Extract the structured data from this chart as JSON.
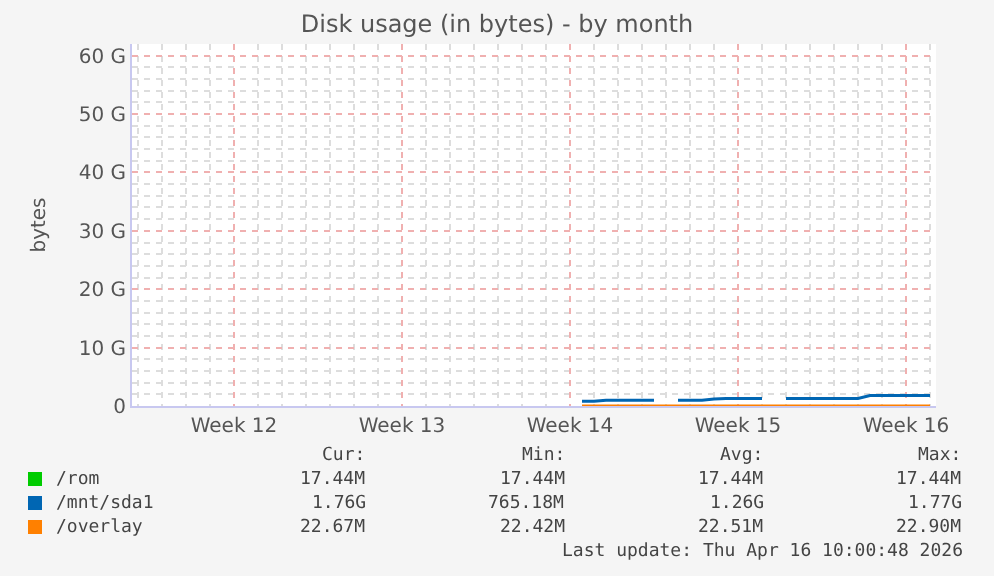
{
  "chart_data": {
    "type": "line",
    "title": "Disk usage (in bytes) - by month",
    "ylabel": "bytes",
    "categories": [
      null,
      null,
      null,
      null,
      null,
      null,
      null,
      null,
      "Week 12",
      null,
      null,
      null,
      null,
      null,
      null,
      null,
      null,
      null,
      null,
      null,
      null,
      null,
      "Week 13",
      null,
      null,
      null,
      null,
      null,
      null,
      null,
      null,
      null,
      null,
      null,
      null,
      null,
      "Week 14",
      null,
      null,
      null,
      null,
      null,
      null,
      null,
      null,
      null,
      null,
      null,
      null,
      null,
      "Week 15",
      null,
      null,
      null,
      null,
      null,
      null,
      null,
      null,
      null,
      null,
      null,
      null,
      null,
      "Week 16",
      null,
      null
    ],
    "ylim": [
      0,
      62
    ],
    "yticks": [
      {
        "value": 0,
        "label": "0"
      },
      {
        "value": 10,
        "label": "10 G"
      },
      {
        "value": 20,
        "label": "20 G"
      },
      {
        "value": 30,
        "label": "30 G"
      },
      {
        "value": 40,
        "label": "40 G"
      },
      {
        "value": 50,
        "label": "50 G"
      },
      {
        "value": 60,
        "label": "60 G"
      }
    ],
    "grid": true,
    "legend": "bottom",
    "series": [
      {
        "name": "/rom",
        "color": "#00cc00",
        "values": [
          null,
          null,
          null,
          null,
          null,
          null,
          null,
          null,
          null,
          null,
          null,
          null,
          null,
          null,
          null,
          null,
          null,
          null,
          null,
          null,
          null,
          null,
          null,
          null,
          null,
          null,
          null,
          null,
          null,
          null,
          null,
          null,
          null,
          null,
          null,
          null,
          null,
          null,
          null,
          null,
          null,
          null,
          null,
          null,
          null,
          null,
          null,
          null,
          null,
          null,
          null,
          null,
          null,
          null,
          null,
          null,
          null,
          null,
          null,
          null,
          null,
          null,
          null,
          null,
          null,
          null,
          null
        ]
      },
      {
        "name": "/mnt/sda1",
        "color": "#0066b3",
        "values": [
          null,
          null,
          null,
          null,
          null,
          null,
          null,
          null,
          null,
          null,
          null,
          null,
          null,
          null,
          null,
          null,
          null,
          null,
          null,
          null,
          null,
          null,
          null,
          null,
          null,
          null,
          null,
          null,
          null,
          null,
          null,
          null,
          null,
          null,
          null,
          null,
          null,
          0.8,
          0.8,
          1.0,
          1.0,
          1.0,
          1.0,
          1.0,
          null,
          1.0,
          1.0,
          1.0,
          1.2,
          1.3,
          1.3,
          1.3,
          1.3,
          null,
          1.3,
          1.3,
          1.3,
          1.3,
          1.3,
          1.3,
          1.3,
          1.8,
          1.8,
          1.8,
          1.8,
          1.8,
          1.8
        ]
      },
      {
        "name": "/overlay",
        "color": "#ff8000",
        "values": [
          null,
          null,
          null,
          null,
          null,
          null,
          null,
          null,
          null,
          null,
          null,
          null,
          null,
          null,
          null,
          null,
          null,
          null,
          null,
          null,
          null,
          null,
          null,
          null,
          null,
          null,
          null,
          null,
          null,
          null,
          null,
          null,
          null,
          null,
          null,
          null,
          null,
          0,
          0,
          0,
          0,
          0,
          0,
          0,
          0,
          0,
          0,
          0,
          0,
          0,
          0,
          0,
          0,
          0,
          0,
          0,
          0,
          0,
          0,
          0,
          0,
          0,
          0,
          0,
          0,
          0,
          0
        ]
      }
    ],
    "annotations": [
      "Cur:",
      "Min:",
      "Avg:",
      "Max:",
      "17.44M",
      "17.44M",
      "17.44M",
      "17.44M",
      "1.76G",
      "765.18M",
      "1.26G",
      "1.77G",
      "22.67M",
      "22.42M",
      "22.51M",
      "22.90M",
      "Last update: Thu Apr 16 10:00:48 2026"
    ]
  }
}
